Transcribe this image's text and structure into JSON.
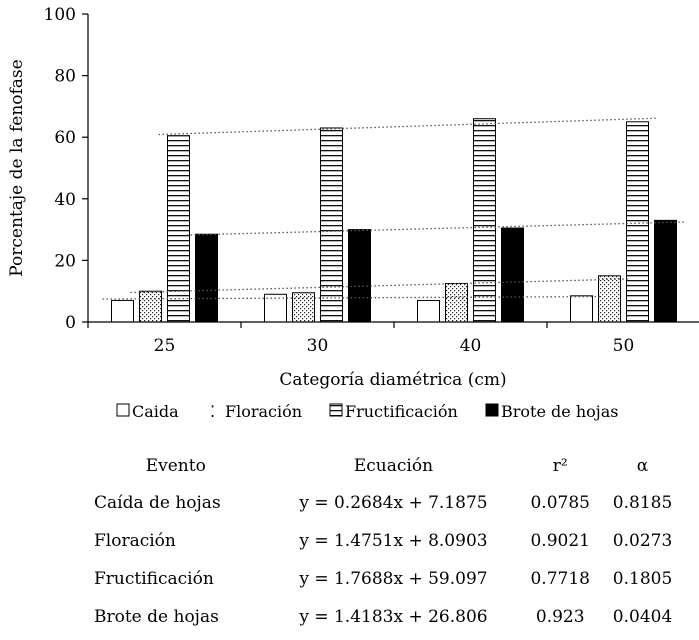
{
  "chart_data": {
    "type": "bar",
    "xlabel": "Categoría diamétrica (cm)",
    "ylabel": "Porcentaje de la fenofase",
    "ylim": [
      0,
      100
    ],
    "yticks": [
      "0",
      "20",
      "40",
      "60",
      "80",
      "100"
    ],
    "categories": [
      "25",
      "30",
      "40",
      "50"
    ],
    "grid": false,
    "legend_position": "bottom",
    "series": [
      {
        "name": "Caida",
        "values": [
          7,
          9,
          7,
          8.5
        ],
        "fill": "#ffffff",
        "pattern": "none"
      },
      {
        "name": "Floración",
        "values": [
          10,
          9.5,
          12.5,
          15
        ],
        "fill": "#ffffff",
        "pattern": "dots"
      },
      {
        "name": "Fructificación",
        "values": [
          60.5,
          63,
          66,
          65
        ],
        "fill": "#ffffff",
        "pattern": "hlines"
      },
      {
        "name": "Brote de hojas",
        "values": [
          28.5,
          30,
          30.5,
          33
        ],
        "fill": "#000000",
        "pattern": "solid"
      }
    ],
    "trendlines": [
      {
        "series": "Caida",
        "slope": 0.2684,
        "intercept": 7.1875
      },
      {
        "series": "Floración",
        "slope": 1.4751,
        "intercept": 8.0903
      },
      {
        "series": "Fructificación",
        "slope": 1.7688,
        "intercept": 59.097
      },
      {
        "series": "Brote de hojas",
        "slope": 1.4183,
        "intercept": 26.806
      }
    ]
  },
  "table": {
    "headers": [
      "Evento",
      "Ecuación",
      "r²",
      "α"
    ],
    "rows": [
      {
        "evento": "Caída de hojas",
        "ecuacion": "y = 0.2684x + 7.1875",
        "r2": "0.0785",
        "alpha": "0.8185"
      },
      {
        "evento": "Floración",
        "ecuacion": "y = 1.4751x + 8.0903",
        "r2": "0.9021",
        "alpha": "0.0273"
      },
      {
        "evento": "Fructificación",
        "ecuacion": "y = 1.7688x + 59.097",
        "r2": "0.7718",
        "alpha": "0.1805"
      },
      {
        "evento": "Brote de hojas",
        "ecuacion": "y = 1.4183x + 26.806",
        "r2": "0.923",
        "alpha": "0.0404"
      }
    ]
  }
}
